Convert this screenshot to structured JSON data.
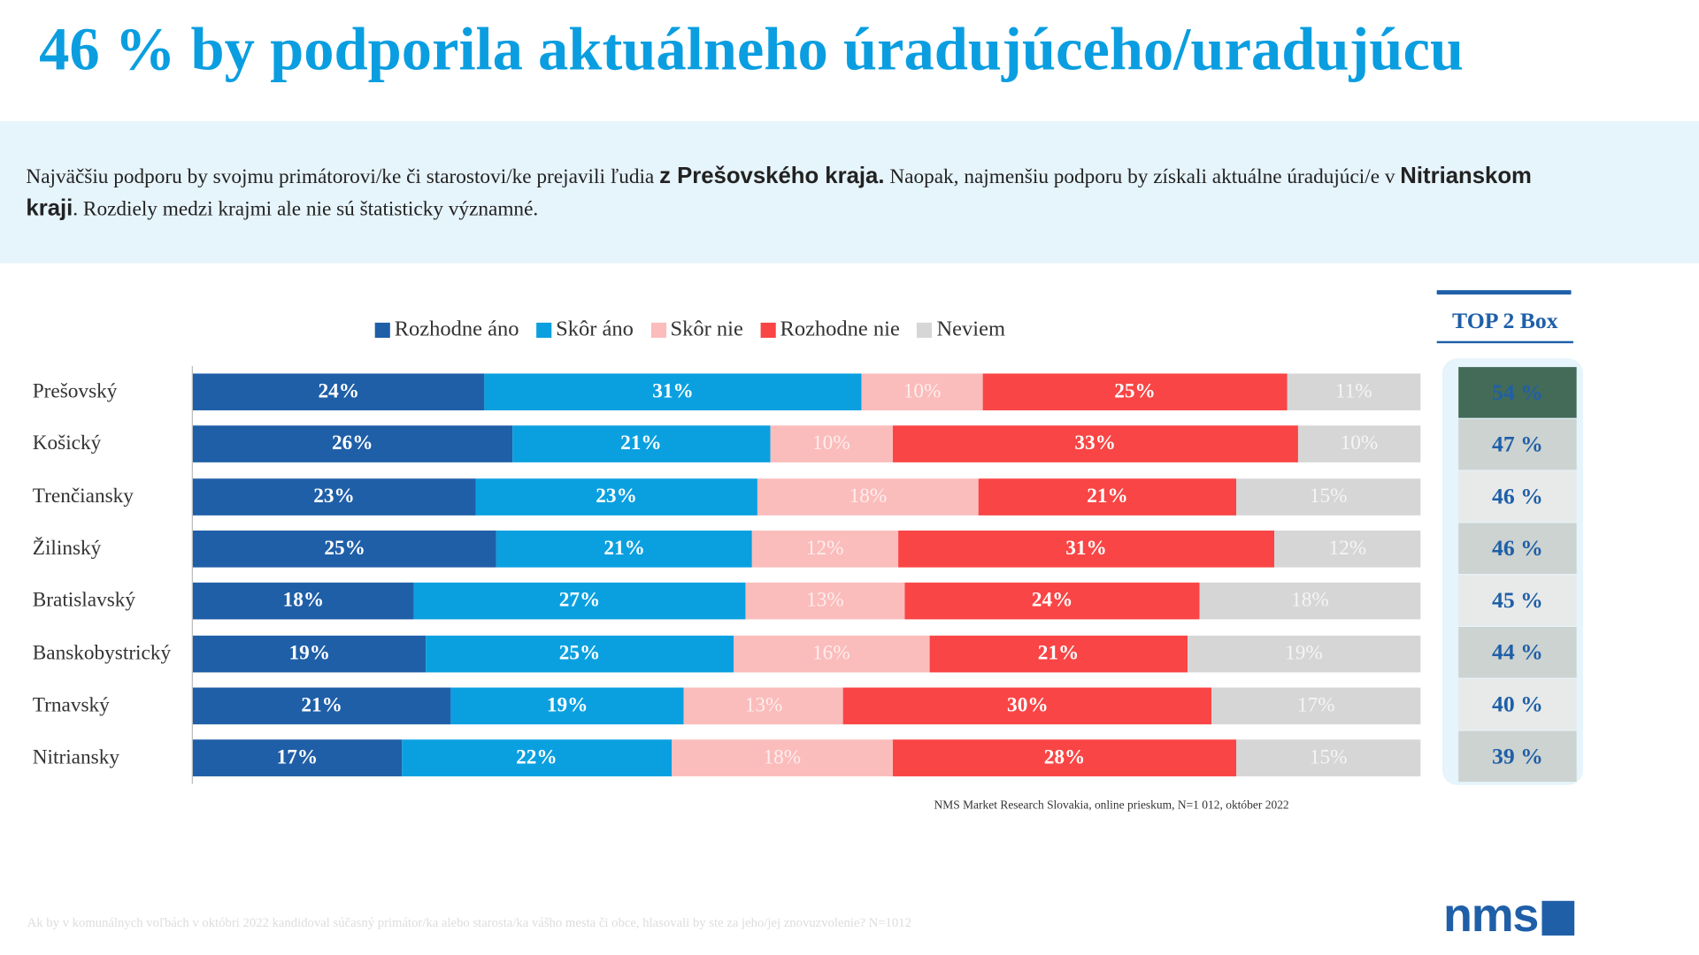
{
  "title": "46 % by podporila aktuálneho úradujúceho/uradujúcu",
  "description": {
    "p1": "Najväčšiu podporu by svojmu primátorovi/ke či starostovi/ke prejavili ľudia ",
    "b1": "z Prešovského kraja.",
    "p2": " Naopak, najmenšiu podporu by získali aktuálne úradujúci/e v ",
    "b2": "Nitrianskom kraji",
    "p3": ". Rozdiely medzi krajmi ale nie sú štatisticky významné."
  },
  "chart_data": {
    "type": "bar",
    "orientation": "horizontal-stacked-100",
    "categories": [
      "Prešovský",
      "Košický",
      "Trenčiansky",
      "Žilinský",
      "Bratislavský",
      "Banskobystrický",
      "Trnavský",
      "Nitriansky"
    ],
    "series": [
      {
        "name": "Rozhodne áno",
        "color": "#1f5fa8",
        "values": [
          24,
          26,
          23,
          25,
          18,
          19,
          21,
          17
        ]
      },
      {
        "name": "Skôr áno",
        "color": "#0aa0e0",
        "values": [
          31,
          21,
          23,
          21,
          27,
          25,
          19,
          22
        ]
      },
      {
        "name": "Skôr nie",
        "color": "#fbbcbc",
        "values": [
          10,
          10,
          18,
          12,
          13,
          16,
          13,
          18
        ]
      },
      {
        "name": "Rozhodne nie",
        "color": "#f94545",
        "values": [
          25,
          33,
          21,
          31,
          24,
          21,
          30,
          28
        ]
      },
      {
        "name": "Neviem",
        "color": "#d6d6d6",
        "values": [
          11,
          10,
          15,
          12,
          18,
          19,
          17,
          15
        ]
      }
    ],
    "legend_position": "top",
    "value_suffix": "%"
  },
  "top2box": {
    "title": "TOP 2 Box",
    "values": [
      "54 %",
      "47 %",
      "46 %",
      "46 %",
      "45 %",
      "44 %",
      "40 %",
      "39 %"
    ]
  },
  "source": "NMS Market Research Slovakia, online prieskum, N=1 012, október 2022",
  "footnote": "Ak by v komunálnych voľbách v októbri 2022 kandidoval súčasný primátor/ka alebo starosta/ka vášho mesta či obce, hlasovali by ste za jeho/jej znovuzvolenie? N=1012",
  "logo": "nms"
}
